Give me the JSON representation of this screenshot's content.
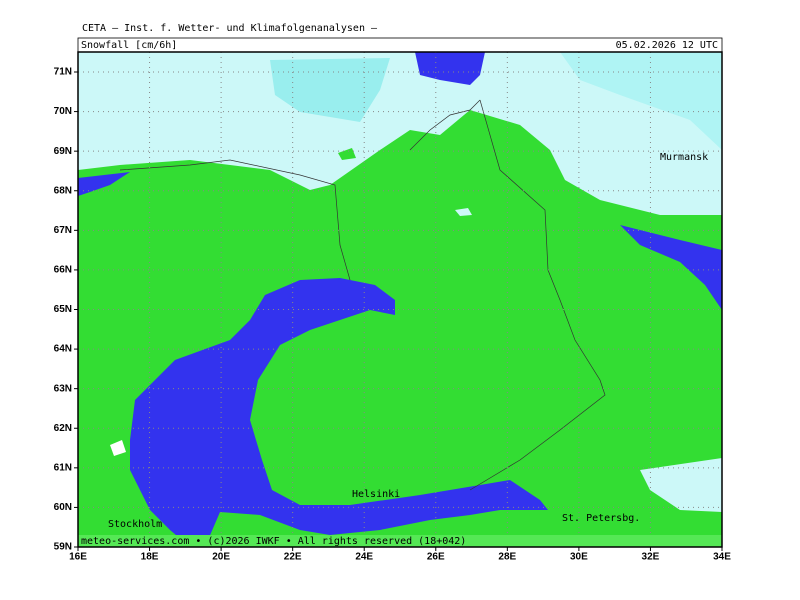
{
  "header": "CETA — Inst. f. Wetter- und Klimafolgenanalysen —",
  "title": "Snowfall [cm/6h]",
  "datetime": "05.02.2026 12 UTC",
  "lat_labels": [
    "71N",
    "70N",
    "69N",
    "68N",
    "67N",
    "66N",
    "65N",
    "64N",
    "63N",
    "62N",
    "61N",
    "60N",
    "59N"
  ],
  "lon_labels": [
    "16E",
    "18E",
    "20E",
    "22E",
    "24E",
    "26E",
    "28E",
    "30E",
    "32E",
    "34E"
  ],
  "cities": [
    {
      "label": "Murmansk"
    },
    {
      "label": "Helsinki"
    },
    {
      "label": "St. Petersbg."
    },
    {
      "label": "Stockholm"
    }
  ],
  "footer": "meteo-services.com • (c)2026 IWKF • All rights reserved (18+042)"
}
